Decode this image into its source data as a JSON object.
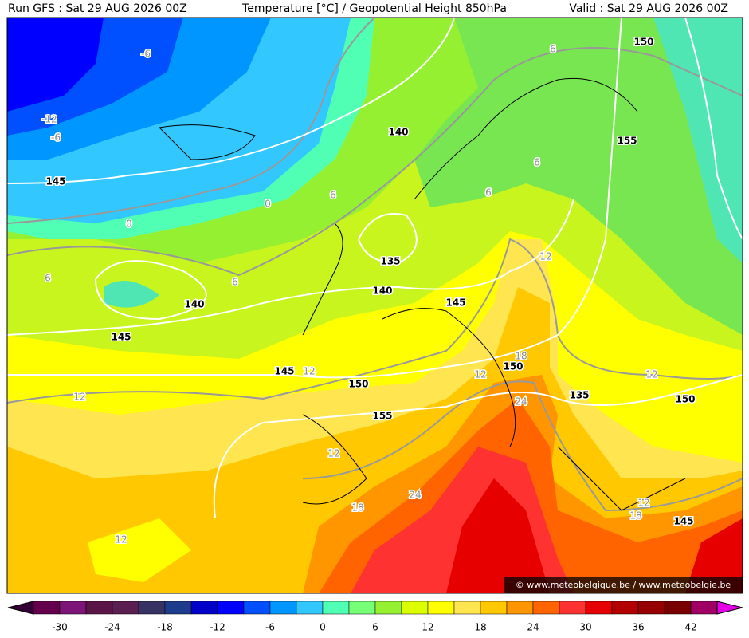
{
  "header": {
    "left": "Run GFS : Sat 29 AUG 2026 00Z",
    "center": "Temperature [°C] / Geopotential Height 850hPa",
    "right": "Valid : Sat 29 AUG 2026 00Z"
  },
  "contour_labels": [
    150,
    -6,
    6,
    -12,
    -6,
    140,
    155,
    145,
    6,
    6,
    0,
    6,
    0,
    12,
    135,
    6,
    6,
    140,
    145,
    140,
    145,
    18,
    150,
    145,
    12,
    12,
    12,
    150,
    135,
    150,
    12,
    24,
    155,
    12,
    24,
    12,
    18,
    18,
    145,
    12
  ],
  "watermark": "© www.meteobelgique.be / www.meteobelgie.be",
  "colorbar": {
    "ticks": [
      -30,
      -24,
      -18,
      -12,
      -6,
      0,
      6,
      12,
      18,
      24,
      30,
      36,
      42
    ],
    "colors": [
      "#64004b",
      "#7d1478",
      "#5a1446",
      "#5a1e50",
      "#373264",
      "#1e3c8c",
      "#0000c8",
      "#0000ff",
      "#0050ff",
      "#0096ff",
      "#32c8ff",
      "#50ffb4",
      "#78ff78",
      "#96f032",
      "#dcff00",
      "#ffff00",
      "#ffe650",
      "#ffc800",
      "#ff9600",
      "#ff6400",
      "#ff3232",
      "#e60000",
      "#b40000",
      "#960000",
      "#780000",
      "#a00064"
    ],
    "low_color": "#320032",
    "high_color": "#e600e6"
  }
}
